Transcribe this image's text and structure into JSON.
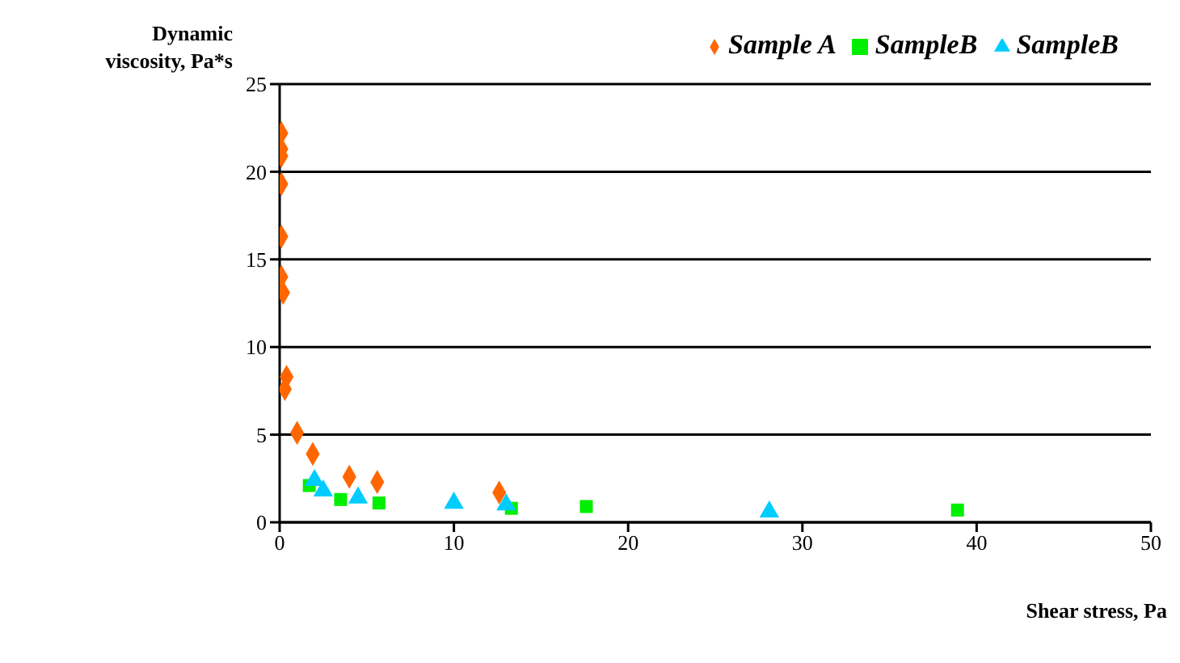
{
  "chart_data": {
    "type": "scatter",
    "xlabel": "Shear stress, Pa",
    "ylabel": "Dynamic viscosity, Pa*s",
    "xlim": [
      0,
      50
    ],
    "xticks": [
      0,
      10,
      20,
      30,
      40,
      50
    ],
    "ylim": [
      0,
      25
    ],
    "yticks": [
      0,
      5,
      10,
      15,
      20,
      25
    ],
    "grid": "y",
    "legend": "top right",
    "series": [
      {
        "name": "Sample A",
        "color": "#ff6600",
        "marker": "diamond",
        "x": [
          0.1,
          0.1,
          0.1,
          0.1,
          0.1,
          0.1,
          0.2,
          0.4,
          0.3,
          1,
          1.9,
          4,
          5.6,
          12.6
        ],
        "values": [
          22.2,
          21.3,
          20.9,
          19.3,
          16.3,
          14,
          13.1,
          8.3,
          7.6,
          5.1,
          3.9,
          2.6,
          2.3,
          1.7
        ]
      },
      {
        "name": "SampleB",
        "color": "#00ee00",
        "marker": "square",
        "x": [
          1.7,
          3.5,
          5.7,
          13.3,
          17.6,
          38.9
        ],
        "values": [
          2.1,
          1.3,
          1.1,
          0.8,
          0.9,
          0.7
        ]
      },
      {
        "name": "SampleB",
        "color": "#00ccff",
        "marker": "triangle",
        "x": [
          2,
          2.5,
          4.5,
          10,
          13,
          28.1
        ],
        "values": [
          2.4,
          1.8,
          1.4,
          1.1,
          1,
          0.6
        ]
      }
    ]
  }
}
